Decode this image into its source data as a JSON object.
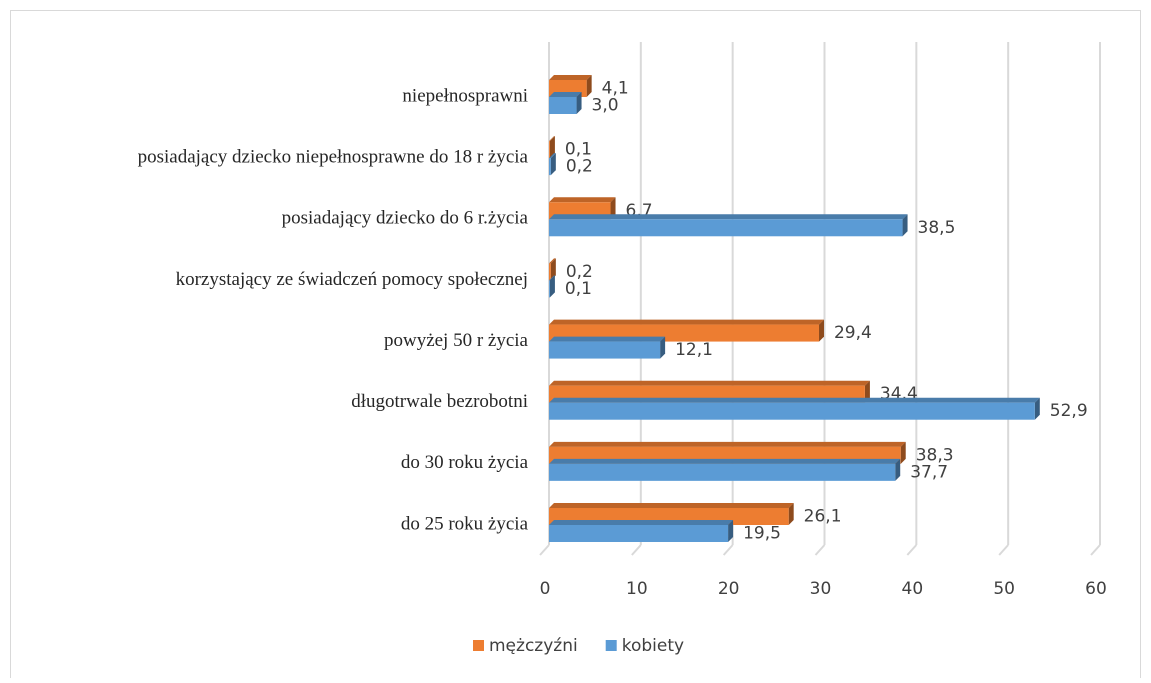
{
  "chart_data": {
    "type": "bar",
    "orientation": "horizontal",
    "categories": [
      "do 25 roku życia",
      "do 30 roku życia",
      "długotrwale bezrobotni",
      "powyżej 50 r życia",
      "korzystający ze świadczeń pomocy społecznej",
      "posiadający dziecko do 6 r.życia",
      "posiadający dziecko niepełnosprawne do 18 r życia",
      "niepełnosprawni"
    ],
    "series": [
      {
        "name": "mężczyźni",
        "color": "#ed7d31",
        "values": [
          26.1,
          38.3,
          34.4,
          29.4,
          0.2,
          6.7,
          0.1,
          4.1
        ],
        "value_labels": [
          "26,1",
          "38,3",
          "34,4",
          "29,4",
          "0,2",
          "6,7",
          "0,1",
          "4,1"
        ]
      },
      {
        "name": "kobiety",
        "color": "#5b9bd5",
        "values": [
          19.5,
          37.7,
          52.9,
          12.1,
          0.1,
          38.5,
          0.2,
          3.0
        ],
        "value_labels": [
          "19,5",
          "37,7",
          "52,9",
          "12,1",
          "0,1",
          "38,5",
          "0,2",
          "3,0"
        ]
      }
    ],
    "xlim": [
      0,
      60
    ],
    "xticks": [
      0,
      10,
      20,
      30,
      40,
      50,
      60
    ],
    "grid": true,
    "legend": "bottom"
  }
}
